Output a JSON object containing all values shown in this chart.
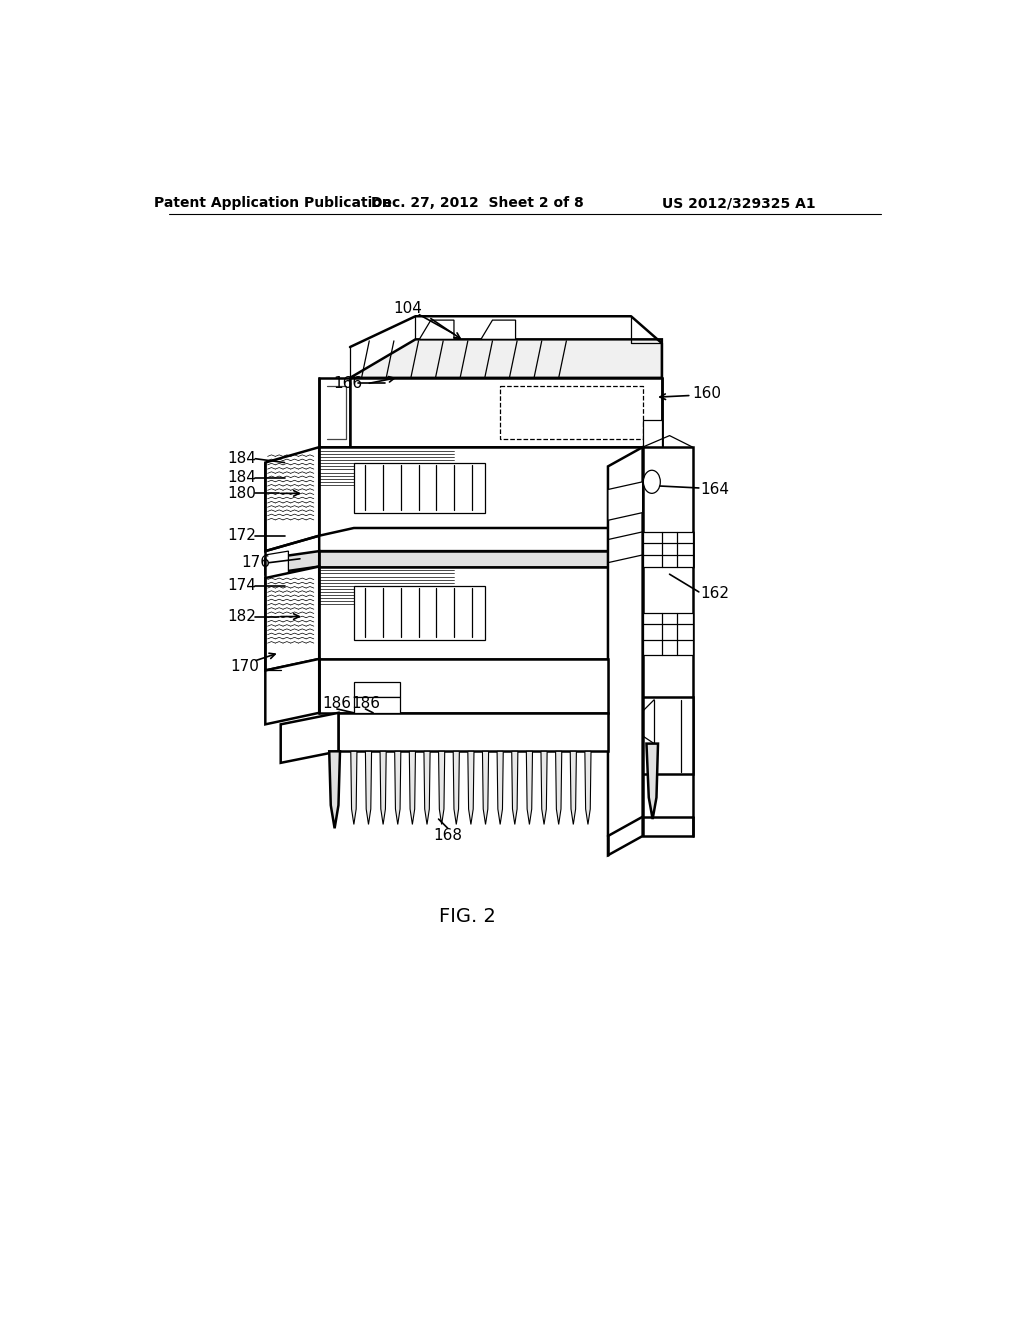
{
  "background_color": "#ffffff",
  "header_left": "Patent Application Publication",
  "header_center": "Dec. 27, 2012  Sheet 2 of 8",
  "header_right": "US 2012/329325 A1",
  "figure_label": "FIG. 2",
  "lw_main": 1.8,
  "lw_thin": 0.9,
  "lw_thick": 2.2,
  "black": "#000000",
  "white": "#ffffff",
  "gray_hatch": "#aaaaaa"
}
